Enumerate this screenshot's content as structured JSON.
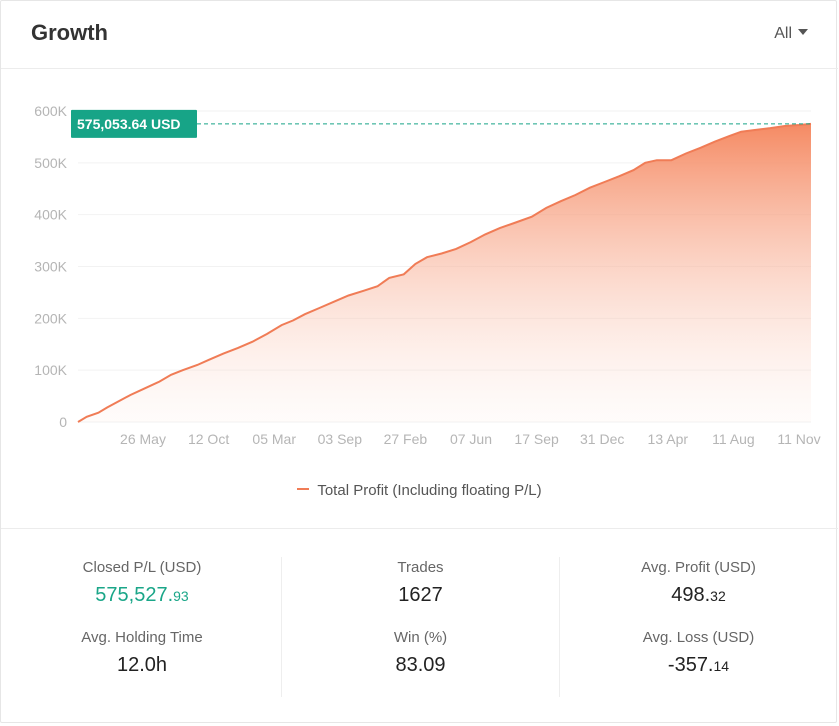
{
  "header": {
    "title": "Growth",
    "range_label": "All"
  },
  "colors": {
    "line": "#f07c56",
    "area_top": "#f58a63",
    "badge": "#17a487",
    "green_value": "#1aa688"
  },
  "chart_data": {
    "type": "area",
    "current_value_label": "575,053.64 USD",
    "current_value": 575053.64,
    "y_ticks": [
      "0",
      "100K",
      "200K",
      "300K",
      "400K",
      "500K",
      "600K"
    ],
    "y_tick_values": [
      0,
      100000,
      200000,
      300000,
      400000,
      500000,
      600000
    ],
    "ylim": [
      0,
      600000
    ],
    "x_tick_labels": [
      "26 May",
      "12 Oct",
      "05 Mar",
      "03 Sep",
      "27 Feb",
      "07 Jun",
      "17 Sep",
      "31 Dec",
      "13 Apr",
      "11 Aug",
      "11 Nov"
    ],
    "series": [
      {
        "name": "Total Profit (Including floating P/L)",
        "points": [
          [
            0,
            0
          ],
          [
            0.3,
            10000
          ],
          [
            0.7,
            18000
          ],
          [
            1.0,
            28000
          ],
          [
            1.4,
            40000
          ],
          [
            1.8,
            52000
          ],
          [
            2.3,
            65000
          ],
          [
            2.8,
            78000
          ],
          [
            3.2,
            91000
          ],
          [
            3.6,
            100000
          ],
          [
            4.1,
            110000
          ],
          [
            4.5,
            120000
          ],
          [
            5.0,
            132000
          ],
          [
            5.5,
            143000
          ],
          [
            6.0,
            155000
          ],
          [
            6.5,
            170000
          ],
          [
            7.0,
            187000
          ],
          [
            7.4,
            196000
          ],
          [
            7.8,
            208000
          ],
          [
            8.3,
            220000
          ],
          [
            8.8,
            232000
          ],
          [
            9.3,
            244000
          ],
          [
            9.8,
            253000
          ],
          [
            10.3,
            262000
          ],
          [
            10.7,
            278000
          ],
          [
            11.2,
            285000
          ],
          [
            11.6,
            305000
          ],
          [
            12.0,
            318000
          ],
          [
            12.5,
            325000
          ],
          [
            13.0,
            334000
          ],
          [
            13.5,
            347000
          ],
          [
            14.0,
            362000
          ],
          [
            14.5,
            374000
          ],
          [
            15.0,
            384000
          ],
          [
            15.6,
            396000
          ],
          [
            16.1,
            413000
          ],
          [
            16.6,
            426000
          ],
          [
            17.1,
            438000
          ],
          [
            17.6,
            452000
          ],
          [
            18.1,
            463000
          ],
          [
            18.6,
            474000
          ],
          [
            19.1,
            486000
          ],
          [
            19.5,
            500000
          ],
          [
            19.9,
            505000
          ],
          [
            20.4,
            505000
          ],
          [
            20.9,
            518000
          ],
          [
            21.4,
            529000
          ],
          [
            21.9,
            541000
          ],
          [
            22.4,
            552000
          ],
          [
            22.8,
            560000
          ],
          [
            23.2,
            563000
          ],
          [
            23.8,
            567000
          ],
          [
            24.3,
            571000
          ],
          [
            24.8,
            573000
          ],
          [
            25.2,
            575053.64
          ]
        ]
      }
    ]
  },
  "stats": {
    "closed_pl": {
      "label": "Closed P/L (USD)",
      "int": "575,527.",
      "dec": "93"
    },
    "trades": {
      "label": "Trades",
      "value": "1627"
    },
    "avg_profit": {
      "label": "Avg. Profit (USD)",
      "int": "498.",
      "dec": "32"
    },
    "avg_holding": {
      "label": "Avg. Holding Time",
      "value": "12.0h"
    },
    "win": {
      "label": "Win (%)",
      "value": "83.09"
    },
    "avg_loss": {
      "label": "Avg. Loss (USD)",
      "int": "-357.",
      "dec": "14"
    }
  }
}
